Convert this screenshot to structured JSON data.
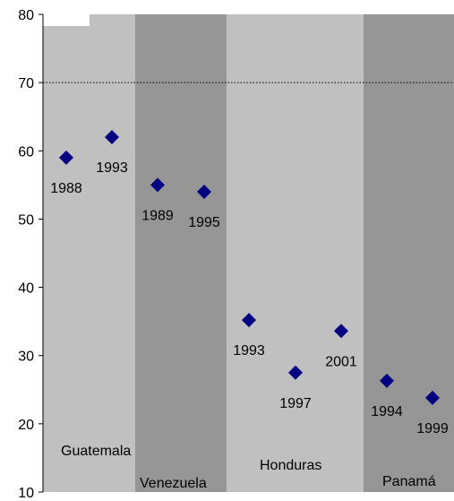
{
  "chart_data": {
    "type": "scatter",
    "title": "",
    "xlabel": "",
    "ylabel": "",
    "ylim": [
      10,
      80
    ],
    "yticks": [
      10,
      20,
      30,
      40,
      50,
      60,
      70,
      80
    ],
    "grid": false,
    "reference_line": {
      "y": 70,
      "style": "dotted"
    },
    "colors": {
      "light_band": "#c0c0c0",
      "dark_band": "#969696",
      "marker": "#000080",
      "reference_line": "#000000"
    },
    "groups": [
      {
        "name": "Guatemala",
        "shade": "light"
      },
      {
        "name": "Venezuela",
        "shade": "dark"
      },
      {
        "name": "Honduras",
        "shade": "light"
      },
      {
        "name": "Panamá",
        "shade": "dark"
      }
    ],
    "points": [
      {
        "group": "Guatemala",
        "label": "1988",
        "y": 59,
        "label_pos": "below"
      },
      {
        "group": "Guatemala",
        "label": "1993",
        "y": 62,
        "label_pos": "below"
      },
      {
        "group": "Venezuela",
        "label": "1989",
        "y": 55,
        "label_pos": "below"
      },
      {
        "group": "Venezuela",
        "label": "1995",
        "y": 54,
        "label_pos": "below"
      },
      {
        "group": "Honduras",
        "label": "1993",
        "y": 35.2,
        "label_pos": "below"
      },
      {
        "group": "Honduras",
        "label": "1997",
        "y": 27.5,
        "label_pos": "below"
      },
      {
        "group": "Honduras",
        "label": "2001",
        "y": 33.6,
        "label_pos": "below"
      },
      {
        "group": "Panamá",
        "label": "1994",
        "y": 26.3,
        "label_pos": "below"
      },
      {
        "group": "Panamá",
        "label": "1999",
        "y": 23.8,
        "label_pos": "below"
      }
    ]
  }
}
